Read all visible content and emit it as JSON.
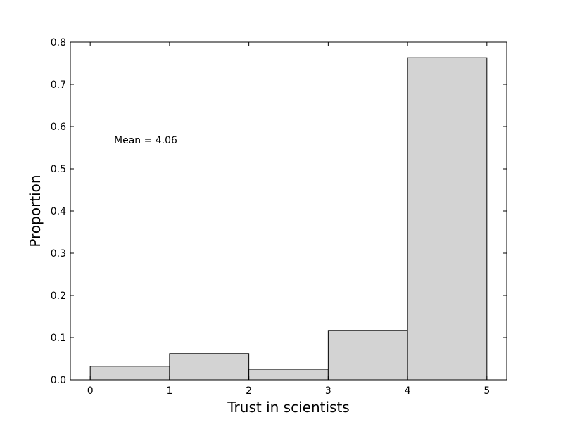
{
  "chart_data": {
    "type": "histogram",
    "xlabel": "Trust in scientists",
    "ylabel": "Proportion",
    "annotation": "Mean = 4.06",
    "bins": [
      0,
      1,
      2,
      3,
      4,
      5
    ],
    "values": [
      0.032,
      0.062,
      0.025,
      0.117,
      0.763
    ],
    "color": "#d3d3d3",
    "xlim": [
      -0.25,
      5.25
    ],
    "xticks": [
      0,
      1,
      2,
      3,
      4,
      5
    ],
    "ylim": [
      0,
      0.8
    ],
    "yticks": [
      {
        "value": 0,
        "label": "0.0"
      },
      0.1,
      0.2,
      0.3,
      0.4,
      0.5,
      0.6,
      0.7,
      0.8
    ]
  }
}
